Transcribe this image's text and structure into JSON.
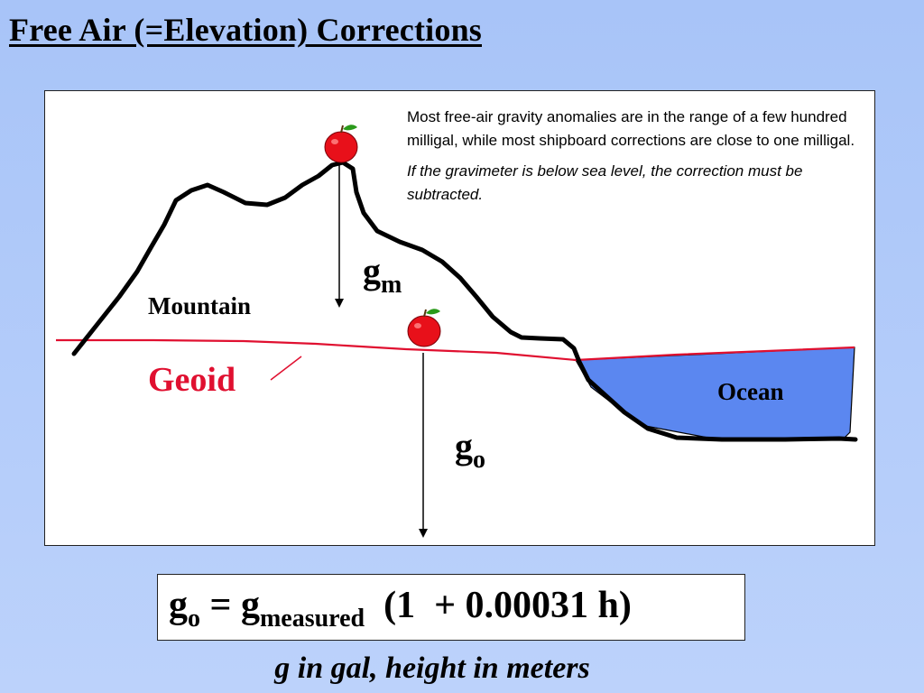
{
  "title": "Free Air (=Elevation) Corrections",
  "diagram": {
    "note_normal": "Most free-air gravity anomalies are in the range of a few hundred milligal, while most shipboard corrections are close to one milligal.",
    "note_italic": "If the gravimeter is below sea level, the correction must be subtracted.",
    "mountain_label": "Mountain",
    "geoid_label": "Geoid",
    "ocean_label": "Ocean",
    "gm_base": "g",
    "gm_sub": "m",
    "go_base": "g",
    "go_sub": "o",
    "icons": [
      "apple-icon",
      "apple-icon"
    ],
    "colors": {
      "geoid": "#e01030",
      "ocean": "#5b87f0",
      "terrain": "#000000"
    }
  },
  "formula": {
    "lhs_base": "g",
    "lhs_sub": "o",
    "equals": " = ",
    "rhs_base": "g",
    "rhs_sub": "measured",
    "rhs_tail": "  (1  + 0.00031 h)"
  },
  "caption": "g in gal, height in meters"
}
